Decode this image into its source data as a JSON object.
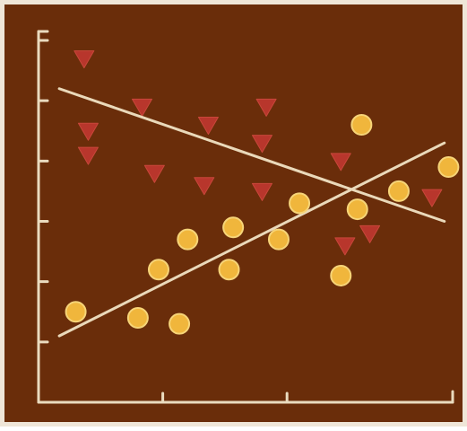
{
  "chart_data": {
    "type": "scatter",
    "title": "",
    "xlabel": "",
    "ylabel": "",
    "xlim": [
      0,
      10
    ],
    "ylim": [
      0,
      6
    ],
    "x_ticks": [
      3,
      6
    ],
    "y_ticks": [
      1,
      2,
      3,
      4,
      5,
      6
    ],
    "grid": false,
    "legend": "none",
    "colors": {
      "background": "#6a2d0a",
      "axis": "#eadbbf",
      "trend": "#ead9ba",
      "circle_fill": "#f0b63c",
      "circle_stroke": "#f6d478",
      "triangle_fill": "#b8362c"
    },
    "series": [
      {
        "marker": "circle",
        "points": [
          [
            0.9,
            1.5
          ],
          [
            2.4,
            1.4
          ],
          [
            3.4,
            1.3
          ],
          [
            2.9,
            2.2
          ],
          [
            3.6,
            2.7
          ],
          [
            4.7,
            2.9
          ],
          [
            4.6,
            2.2
          ],
          [
            5.8,
            2.7
          ],
          [
            6.3,
            3.3
          ],
          [
            7.3,
            2.1
          ],
          [
            7.7,
            3.2
          ],
          [
            8.7,
            3.5
          ],
          [
            9.9,
            3.9
          ],
          [
            7.8,
            4.6
          ]
        ]
      },
      {
        "marker": "triangle-down",
        "points": [
          [
            1.1,
            5.7
          ],
          [
            2.5,
            4.9
          ],
          [
            1.2,
            4.5
          ],
          [
            1.2,
            4.1
          ],
          [
            2.8,
            3.8
          ],
          [
            4.1,
            4.6
          ],
          [
            4.0,
            3.6
          ],
          [
            5.5,
            4.9
          ],
          [
            5.4,
            4.3
          ],
          [
            5.4,
            3.5
          ],
          [
            7.3,
            4.0
          ],
          [
            8.0,
            2.8
          ],
          [
            7.4,
            2.6
          ],
          [
            9.5,
            3.4
          ]
        ]
      }
    ],
    "trend_lines": [
      {
        "from": [
          0.5,
          5.2
        ],
        "to": [
          9.8,
          3.0
        ]
      },
      {
        "from": [
          0.5,
          1.1
        ],
        "to": [
          9.8,
          4.3
        ]
      }
    ]
  }
}
